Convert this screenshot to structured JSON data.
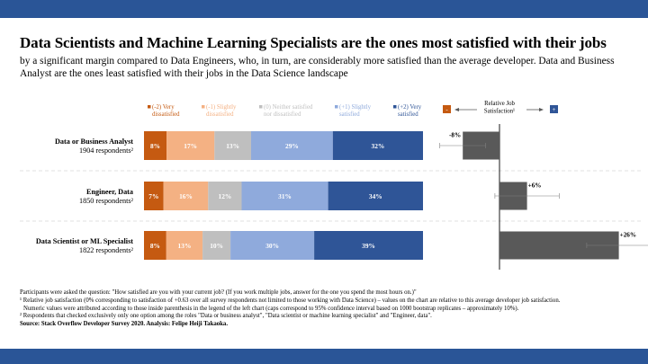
{
  "colors": {
    "band": "#2a5597",
    "very_dissatisfied": "#c55a11",
    "slightly_dissatisfied": "#f4b183",
    "neutral": "#bfbfbf",
    "slightly_satisfied": "#8faadc",
    "very_satisfied": "#2f5597",
    "relative_bar": "#595959"
  },
  "header": {
    "title": "Data Scientists and Machine Learning Specialists are the ones most satisfied with their jobs",
    "subtitle": "by a significant margin compared to Data Engineers, who, in turn, are considerably more satisfied than the average developer. Data and Business Analyst are the ones least satisfied with their jobs in the Data Science landscape"
  },
  "chart_data": [
    {
      "type": "bar",
      "orientation": "horizontal",
      "stacked": true,
      "percent": true,
      "categories": [
        "Data or Business Analyst",
        "Engineer, Data",
        "Data Scientist or ML Specialist"
      ],
      "respondents": [
        "1904 respondents²",
        "1850 respondents²",
        "1822 respondents²"
      ],
      "series": [
        {
          "name": "(-2) Very dissatisfied",
          "legend_lines": [
            "(-2) Very",
            "dissatisfied"
          ],
          "color": "#c55a11",
          "label_color": "#ffffff",
          "values": [
            8,
            7,
            8
          ]
        },
        {
          "name": "(-1) Slightly dissatisfied",
          "legend_lines": [
            "(-1) Slightly",
            "dissatisfied"
          ],
          "color": "#f4b183",
          "label_color": "#ffffff",
          "values": [
            17,
            16,
            13
          ]
        },
        {
          "name": "(0) Neither satisfied nor dissatisfied",
          "legend_lines": [
            "(0) Neither satisfied",
            "nor dissatisfied"
          ],
          "color": "#bfbfbf",
          "label_color": "#ffffff",
          "values": [
            13,
            12,
            10
          ]
        },
        {
          "name": "(+1) Slightly satisfied",
          "legend_lines": [
            "(+1) Slightly",
            "satisfied"
          ],
          "color": "#8faadc",
          "label_color": "#ffffff",
          "values": [
            29,
            31,
            30
          ]
        },
        {
          "name": "(+2) Very satisfied",
          "legend_lines": [
            "(+2) Very",
            "satisfied"
          ],
          "color": "#2f5597",
          "label_color": "#ffffff",
          "values": [
            32,
            34,
            39
          ]
        }
      ],
      "value_suffix": "%"
    },
    {
      "type": "bar",
      "orientation": "horizontal",
      "axis_label_lines": [
        "Relative Job",
        "Satisfaction¹"
      ],
      "negative_marker": "-",
      "positive_marker": "+",
      "categories": [
        "Data or Business Analyst",
        "Engineer, Data",
        "Data Scientist or ML Specialist"
      ],
      "values": [
        -8,
        6,
        26
      ],
      "labels": [
        "-8%",
        "+6%",
        "+26%"
      ],
      "errors": [
        5,
        7,
        7
      ],
      "xlim": [
        -12,
        40
      ],
      "color": "#595959"
    }
  ],
  "notes": {
    "line1": "Participants were asked the question: \"How satisfied are you with your current job? (If you work multiple jobs, answer for the one you spend the most hours on.)\"",
    "line2": "¹ Relative job satisfaction (0% corresponding to satisfaction of +0.63 over all survey respondents not limited to those working with Data Science) – values on the chart are relative to this average developer job satisfaction.",
    "line3": "Numeric values were attributed according to those inside parenthesis in the legend of the left chart (caps correspond to 95% confidence interval based on 1000 bootstrap replicates – approximately 10%).",
    "line4": "² Respondents that checked exclusively only one option among the roles \"Data or business analyst\", \"Data scientist or machine learning specialist\" and \"Engineer, data\".",
    "source": "Source: Stack Overflow Developer Survey 2020. Analysis: Felipe Heiji Takaoka."
  }
}
